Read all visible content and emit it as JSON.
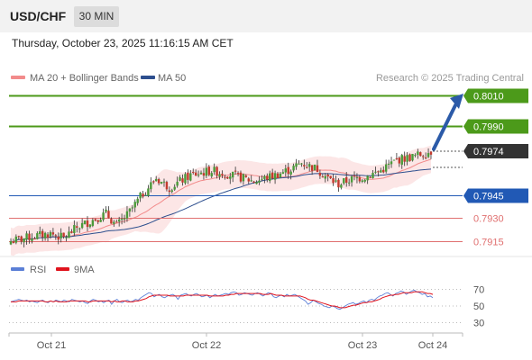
{
  "header": {
    "symbol": "USD/CHF",
    "timeframe": "30 MIN"
  },
  "datetime": "Thursday, October 23, 2025 11:16:15 AM CET",
  "legend": {
    "ma20_bb": "MA 20 + Bollinger Bands",
    "ma50": "MA 50",
    "copyright": "Research © 2025 Trading Central"
  },
  "rsi_legend": {
    "rsi": "RSI",
    "ma9": "9MA"
  },
  "colors": {
    "green": "#4c9a1a",
    "blue": "#2159b5",
    "red": "#e07070",
    "dark": "#333333",
    "ma20": "#f28b8b",
    "ma50": "#2d4f8e",
    "band": "#fbdede",
    "rsi": "#5b7fd6",
    "rsi_ma": "#e0141e"
  },
  "chart_data": {
    "type": "candlestick",
    "title": "USD/CHF 30 MIN",
    "x_tick_labels": [
      "Oct 21",
      "Oct 22",
      "Oct 23",
      "Oct 24"
    ],
    "y_range": [
      0.7905,
      0.8015
    ],
    "current_price": "0.7974",
    "levels": [
      {
        "value": 0.801,
        "label": "0.8010",
        "type": "resistance"
      },
      {
        "value": 0.799,
        "label": "0.7990",
        "type": "resistance"
      },
      {
        "value": 0.7945,
        "label": "0.7945",
        "type": "pivot"
      },
      {
        "value": 0.793,
        "label": "0.7930",
        "type": "support"
      },
      {
        "value": 0.7915,
        "label": "0.7915",
        "type": "support"
      }
    ],
    "price_path": [
      [
        0,
        0.7915
      ],
      [
        8,
        0.7918
      ],
      [
        15,
        0.792
      ],
      [
        20,
        0.7917
      ],
      [
        25,
        0.7924
      ],
      [
        30,
        0.7928
      ],
      [
        36,
        0.7933
      ],
      [
        40,
        0.7925
      ],
      [
        44,
        0.7932
      ],
      [
        50,
        0.7946
      ],
      [
        55,
        0.7956
      ],
      [
        60,
        0.795
      ],
      [
        68,
        0.7958
      ],
      [
        76,
        0.7961
      ],
      [
        84,
        0.7958
      ],
      [
        92,
        0.7954
      ],
      [
        100,
        0.7958
      ],
      [
        106,
        0.7962
      ],
      [
        110,
        0.7966
      ],
      [
        116,
        0.7962
      ],
      [
        120,
        0.7956
      ],
      [
        124,
        0.7952
      ],
      [
        128,
        0.7955
      ],
      [
        134,
        0.7957
      ],
      [
        140,
        0.7961
      ],
      [
        146,
        0.7968
      ],
      [
        152,
        0.797
      ],
      [
        156,
        0.7972
      ],
      [
        160,
        0.7974
      ]
    ],
    "projection": {
      "from": 0.7975,
      "to": 0.801
    },
    "rsi": {
      "levels": [
        30,
        50,
        70
      ],
      "tick_labels": [
        "70",
        "50",
        "30"
      ],
      "values": [
        55,
        56,
        57,
        58,
        57,
        56,
        57,
        55,
        56,
        55,
        54,
        56,
        57,
        55,
        54,
        56,
        55,
        57,
        56,
        55,
        57,
        56,
        55,
        58,
        57,
        56,
        55,
        56,
        54,
        53,
        56,
        58,
        57,
        55,
        56,
        54,
        56,
        57,
        52,
        56,
        58,
        55,
        54,
        56,
        57,
        55,
        56,
        58,
        57,
        60,
        62,
        64,
        66,
        65,
        61,
        63,
        64,
        61,
        60,
        62,
        63,
        64,
        62,
        58,
        63,
        64,
        65,
        63,
        62,
        64,
        65,
        63,
        61,
        62,
        63,
        60,
        62,
        64,
        62,
        63,
        64,
        65,
        64,
        66,
        67,
        66,
        63,
        64,
        66,
        65,
        64,
        63,
        65,
        66,
        64,
        62,
        64,
        66,
        65,
        61,
        60,
        62,
        63,
        61,
        64,
        62,
        63,
        64,
        62,
        60,
        58,
        56,
        52,
        54,
        57,
        55,
        53,
        52,
        50,
        49,
        48,
        50,
        49,
        47,
        46,
        48,
        50,
        52,
        53,
        54,
        52,
        53,
        55,
        56,
        54,
        57,
        58,
        57,
        60,
        62,
        63,
        65,
        66,
        64,
        62,
        65,
        66,
        68,
        67,
        64,
        66,
        68,
        69,
        67,
        66,
        64,
        65,
        61,
        62,
        60
      ],
      "ma": [
        55,
        55,
        55,
        56,
        56,
        56,
        56,
        56,
        56,
        56,
        56,
        56,
        56,
        55,
        55,
        56,
        55,
        56,
        55,
        55,
        55,
        55,
        56,
        56,
        56,
        56,
        56,
        56,
        56,
        55,
        55,
        56,
        56,
        56,
        56,
        56,
        56,
        56,
        55,
        56,
        55,
        55,
        56,
        56,
        55,
        55,
        55,
        56,
        56,
        57,
        58,
        59,
        61,
        62,
        63,
        63,
        63,
        63,
        63,
        63,
        62,
        62,
        62,
        62,
        62,
        62,
        63,
        63,
        63,
        63,
        63,
        63,
        63,
        63,
        63,
        62,
        62,
        62,
        62,
        62,
        62,
        63,
        63,
        64,
        64,
        65,
        65,
        65,
        65,
        65,
        65,
        65,
        65,
        65,
        65,
        64,
        64,
        64,
        65,
        64,
        63,
        63,
        63,
        62,
        62,
        62,
        62,
        62,
        62,
        62,
        61,
        60,
        58,
        57,
        57,
        56,
        55,
        54,
        53,
        52,
        51,
        50,
        50,
        49,
        48,
        48,
        48,
        49,
        50,
        51,
        51,
        52,
        53,
        54,
        54,
        55,
        55,
        56,
        57,
        58,
        60,
        61,
        62,
        63,
        63,
        64,
        64,
        65,
        66,
        66,
        66,
        66,
        67,
        67,
        67,
        67,
        66,
        65,
        65,
        64
      ]
    }
  }
}
